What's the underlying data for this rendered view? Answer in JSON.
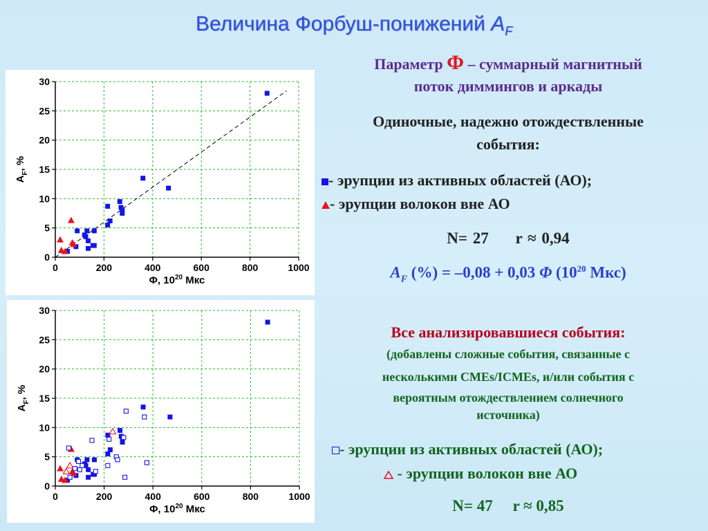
{
  "title": {
    "main": "Величина Форбуш-понижений ",
    "af": "A",
    "af_sub": "F"
  },
  "right_panel": {
    "param_prefix": "Параметр ",
    "param_symbol": "Φ",
    "param_suffix": " – суммарный магнитный",
    "param_line2": "поток диммингов и аркады",
    "single_heading_1": "Одиночные, надежно отождествленные",
    "single_heading_2": "события:",
    "legend_top": [
      {
        "icon": "filled-square-icon",
        "text": "-  эрупции из активных областей (АО);"
      },
      {
        "icon": "filled-triangle-icon",
        "text": "- эрупции волокон вне АО"
      }
    ],
    "stats_top": {
      "n": "N= 27",
      "r": "r ≈ 0,94"
    },
    "formula": {
      "lhs": "A",
      "lhs_sub": "F",
      "body": " (%) = –0,08 + 0,03 ",
      "phi": "Φ",
      "tail": " (10",
      "sup": "20",
      "end": " Мкс)"
    },
    "all_heading": "Все анализировавшиеся события:",
    "all_note_1": "(добавлены сложные события, связанные с",
    "all_note_2": "несколькими CMEs/ICMEs, и/или события с",
    "all_note_3": "вероятным отождествлением солнечного",
    "all_note_4": "источника)",
    "legend_bottom": [
      {
        "icon": "open-square-icon",
        "text": "- эрупции из активных областей (АО);"
      },
      {
        "icon": "open-triangle-icon",
        "text": " - эрупции волокон вне АО"
      }
    ],
    "stats_bottom": {
      "n": "N= 47",
      "r": "r ≈ 0,85"
    }
  },
  "colors": {
    "blue_marker": "#1414e6",
    "red_marker": "#e8141e",
    "grid": "#22bb22",
    "fit_line": "#000000"
  },
  "chart_data": [
    {
      "type": "scatter",
      "xlabel": "Φ, 10",
      "xlabel_sup": "20",
      "xlabel_unit": " Мкс",
      "ylabel": "A",
      "ylabel_sub": "F",
      "ylabel_unit": ", %",
      "xlim": [
        0,
        1000
      ],
      "ylim": [
        0,
        30
      ],
      "xticks": [
        "0",
        "200",
        "400",
        "600",
        "800",
        "1000"
      ],
      "yticks": [
        "0",
        "5",
        "10",
        "15",
        "20",
        "25",
        "30"
      ],
      "grid": true,
      "fit_line": {
        "x": [
          0,
          950
        ],
        "intercept": -0.08,
        "slope": 0.03
      },
      "series": [
        {
          "marker": "filled-square",
          "points": [
            [
              50,
              1.0
            ],
            [
              85,
              1.8
            ],
            [
              90,
              4.5
            ],
            [
              120,
              3.8
            ],
            [
              125,
              3.5
            ],
            [
              130,
              4.5
            ],
            [
              135,
              2.8
            ],
            [
              135,
              1.5
            ],
            [
              155,
              2.0
            ],
            [
              160,
              4.5
            ],
            [
              160,
              2.0
            ],
            [
              215,
              8.7
            ],
            [
              215,
              5.5
            ],
            [
              225,
              6.2
            ],
            [
              265,
              9.5
            ],
            [
              270,
              8.5
            ],
            [
              275,
              8.0
            ],
            [
              275,
              7.5
            ],
            [
              360,
              13.5
            ],
            [
              465,
              11.8
            ],
            [
              870,
              28.0
            ]
          ]
        },
        {
          "marker": "filled-triangle",
          "points": [
            [
              20,
              3.0
            ],
            [
              25,
              1.2
            ],
            [
              40,
              1.0
            ],
            [
              65,
              6.3
            ],
            [
              70,
              2.5
            ],
            [
              75,
              2.2
            ]
          ]
        }
      ]
    },
    {
      "type": "scatter",
      "xlabel": "Φ, 10",
      "xlabel_sup": "20",
      "xlabel_unit": " Мкс",
      "ylabel": "A",
      "ylabel_sub": "F",
      "ylabel_unit": ", %",
      "xlim": [
        0,
        1000
      ],
      "ylim": [
        0,
        30
      ],
      "xticks": [
        "0",
        "200",
        "400",
        "600",
        "800",
        "1000"
      ],
      "yticks": [
        "0",
        "5",
        "10",
        "15",
        "20",
        "25",
        "30"
      ],
      "grid": true,
      "series": [
        {
          "marker": "filled-square",
          "points": [
            [
              50,
              1.0
            ],
            [
              85,
              1.8
            ],
            [
              90,
              4.5
            ],
            [
              120,
              3.8
            ],
            [
              125,
              3.5
            ],
            [
              130,
              4.5
            ],
            [
              135,
              2.8
            ],
            [
              135,
              1.5
            ],
            [
              155,
              2.0
            ],
            [
              160,
              4.5
            ],
            [
              160,
              2.0
            ],
            [
              215,
              8.7
            ],
            [
              215,
              5.5
            ],
            [
              225,
              6.2
            ],
            [
              265,
              9.5
            ],
            [
              270,
              8.5
            ],
            [
              275,
              8.0
            ],
            [
              275,
              7.5
            ],
            [
              360,
              13.5
            ],
            [
              470,
              11.8
            ],
            [
              870,
              28.0
            ]
          ]
        },
        {
          "marker": "filled-triangle",
          "points": [
            [
              20,
              3.0
            ],
            [
              25,
              1.2
            ],
            [
              40,
              1.0
            ],
            [
              65,
              6.3
            ],
            [
              70,
              2.5
            ],
            [
              75,
              2.2
            ]
          ]
        },
        {
          "marker": "open-square",
          "points": [
            [
              55,
              6.5
            ],
            [
              60,
              1.5
            ],
            [
              80,
              3.0
            ],
            [
              100,
              2.8
            ],
            [
              110,
              3.5
            ],
            [
              150,
              7.8
            ],
            [
              165,
              2.5
            ],
            [
              215,
              3.5
            ],
            [
              220,
              8.0
            ],
            [
              250,
              5.0
            ],
            [
              255,
              4.5
            ],
            [
              280,
              8.3
            ],
            [
              285,
              1.5
            ],
            [
              290,
              12.8
            ],
            [
              365,
              11.8
            ],
            [
              375,
              4.0
            ],
            [
              95,
              4.2
            ]
          ]
        },
        {
          "marker": "open-triangle",
          "points": [
            [
              45,
              2.5
            ],
            [
              60,
              3.5
            ],
            [
              235,
              9.3
            ]
          ]
        }
      ]
    }
  ]
}
